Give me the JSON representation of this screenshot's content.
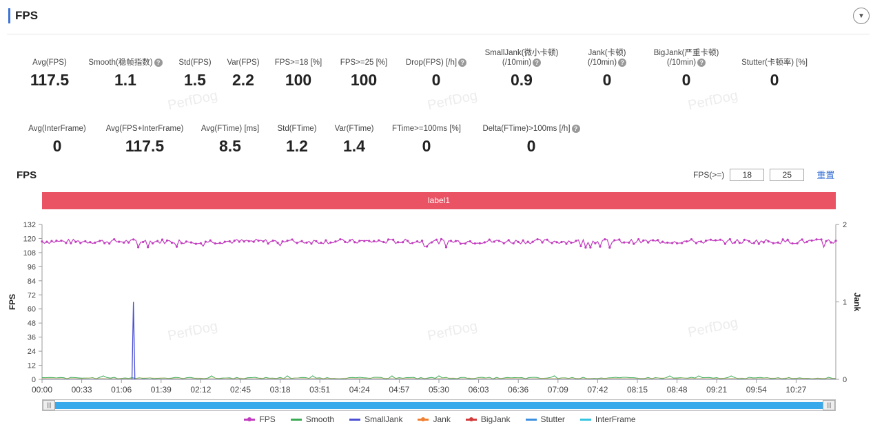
{
  "header": {
    "title": "FPS"
  },
  "metrics_row1": [
    {
      "label": "Avg(FPS)",
      "value": "117.5",
      "help": false
    },
    {
      "label": "Smooth(稳帧指数)",
      "value": "1.1",
      "help": true
    },
    {
      "label": "Std(FPS)",
      "value": "1.5",
      "help": false
    },
    {
      "label": "Var(FPS)",
      "value": "2.2",
      "help": false
    },
    {
      "label": "FPS>=18 [%]",
      "value": "100",
      "help": false
    },
    {
      "label": "FPS>=25 [%]",
      "value": "100",
      "help": false
    },
    {
      "label": "Drop(FPS) [/h]",
      "value": "0",
      "help": true
    },
    {
      "label": "SmallJank(微小卡顿)",
      "label2": "(/10min)",
      "value": "0.9",
      "help": true
    },
    {
      "label": "Jank(卡顿)",
      "label2": "(/10min)",
      "value": "0",
      "help": true
    },
    {
      "label": "BigJank(严重卡顿)",
      "label2": "(/10min)",
      "value": "0",
      "help": true
    },
    {
      "label": "Stutter(卡顿率) [%]",
      "value": "0",
      "help": false
    }
  ],
  "metrics_row2": [
    {
      "label": "Avg(InterFrame)",
      "value": "0",
      "help": false
    },
    {
      "label": "Avg(FPS+InterFrame)",
      "value": "117.5",
      "help": false
    },
    {
      "label": "Avg(FTime) [ms]",
      "value": "8.5",
      "help": false
    },
    {
      "label": "Std(FTime)",
      "value": "1.2",
      "help": false
    },
    {
      "label": "Var(FTime)",
      "value": "1.4",
      "help": false
    },
    {
      "label": "FTime>=100ms [%]",
      "value": "0",
      "help": false
    },
    {
      "label": "Delta(FTime)>100ms [/h]",
      "value": "0",
      "help": true
    }
  ],
  "watermark_text": "PerfDog",
  "chart_section": {
    "title": "FPS",
    "threshold_label": "FPS(>=)",
    "threshold1": "18",
    "threshold2": "25",
    "reset_label": "重置",
    "label_bar": "label1"
  },
  "chart_data": {
    "type": "line",
    "ylabel": "FPS",
    "y2label": "Jank",
    "ylim": [
      0,
      132
    ],
    "yticks": [
      0,
      12,
      24,
      36,
      48,
      60,
      72,
      84,
      96,
      108,
      120,
      132
    ],
    "y2lim": [
      0,
      2
    ],
    "y2ticks": [
      0,
      1,
      2
    ],
    "xticks": [
      "00:00",
      "00:33",
      "01:06",
      "01:39",
      "02:12",
      "02:45",
      "03:18",
      "03:51",
      "04:24",
      "04:57",
      "05:30",
      "06:03",
      "06:36",
      "07:09",
      "07:42",
      "08:15",
      "08:48",
      "09:21",
      "09:54",
      "10:27"
    ],
    "x_start_s": 0,
    "x_end_s": 660,
    "series": [
      {
        "name": "FPS",
        "color": "#c23cbf",
        "avg": 117.5,
        "min": 112,
        "max": 120.5,
        "marker": "dot"
      },
      {
        "name": "Smooth",
        "color": "#3aaa55",
        "avg": 1.1
      },
      {
        "name": "SmallJank",
        "color": "#4a4fd4",
        "spikes": [
          {
            "x_s": 76,
            "value": 66
          }
        ]
      },
      {
        "name": "Jank",
        "color": "#f08030"
      },
      {
        "name": "BigJank",
        "color": "#d33a3a"
      },
      {
        "name": "Stutter",
        "color": "#3b8fe0"
      },
      {
        "name": "InterFrame",
        "color": "#35c5e0"
      }
    ]
  },
  "legend": [
    {
      "name": "FPS",
      "color": "#c23cbf",
      "dot": true
    },
    {
      "name": "Smooth",
      "color": "#3aaa55",
      "dot": false
    },
    {
      "name": "SmallJank",
      "color": "#4a4fd4",
      "dot": false
    },
    {
      "name": "Jank",
      "color": "#f08030",
      "dot": true
    },
    {
      "name": "BigJank",
      "color": "#d33a3a",
      "dot": true
    },
    {
      "name": "Stutter",
      "color": "#3b8fe0",
      "dot": false
    },
    {
      "name": "InterFrame",
      "color": "#35c5e0",
      "dot": false
    }
  ]
}
